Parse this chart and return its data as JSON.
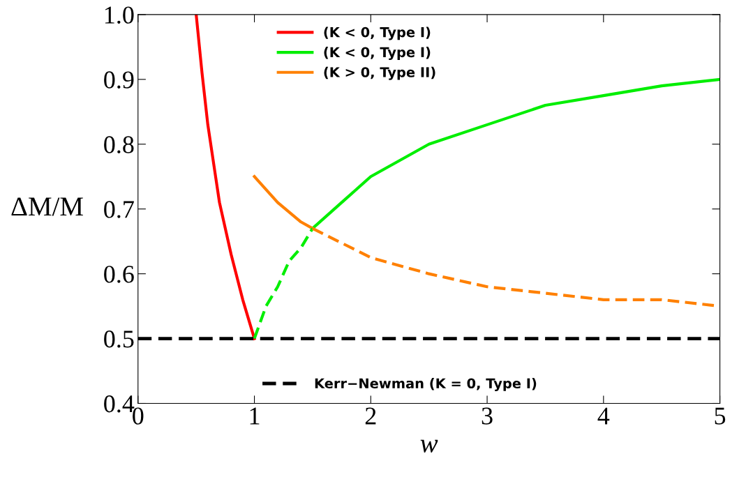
{
  "chart_data": {
    "type": "line",
    "xlabel": "w",
    "ylabel": "ΔM/M",
    "xlim": [
      0,
      5
    ],
    "ylim": [
      0.4,
      1.0
    ],
    "xticks": [
      0,
      1,
      2,
      3,
      4,
      5
    ],
    "yticks": [
      {
        "value": 0.4,
        "label": "0.4"
      },
      {
        "value": 0.5,
        "label": "0.5"
      },
      {
        "value": 0.6,
        "label": "0.6"
      },
      {
        "value": 0.7,
        "label": "0.7"
      },
      {
        "value": 0.8,
        "label": "0.8"
      },
      {
        "value": 0.9,
        "label": "0.9"
      },
      {
        "value": 1.0,
        "label": "1.0"
      }
    ],
    "grid": false,
    "legend": "top",
    "marker": "none",
    "series": [
      {
        "name": "(K < 0, Type I)",
        "color": "#ff0000",
        "line_style": "solid",
        "x": [
          0.5,
          0.55,
          0.6,
          0.7,
          0.8,
          0.9,
          1.0
        ],
        "values": [
          1.0,
          0.91,
          0.83,
          0.71,
          0.63,
          0.56,
          0.5
        ]
      },
      {
        "name": "(K < 0, Type I)",
        "color": "#00ee00",
        "line_style": "solid",
        "x": [
          1.5,
          1.75,
          2,
          2.5,
          3,
          3.5,
          4,
          4.5,
          5
        ],
        "values": [
          0.67,
          0.71,
          0.75,
          0.8,
          0.83,
          0.86,
          0.875,
          0.89,
          0.9
        ]
      },
      {
        "name": "(K > 0, Type II)",
        "color": "#ff8000",
        "line_style": "solid",
        "x": [
          1.0,
          1.2,
          1.4,
          1.5
        ],
        "values": [
          0.75,
          0.71,
          0.68,
          0.67
        ]
      },
      {
        "color": "#00ee00",
        "line_style": "dashed",
        "x": [
          1.0,
          1.1,
          1.2,
          1.3,
          1.4,
          1.5
        ],
        "values": [
          0.5,
          0.55,
          0.58,
          0.62,
          0.64,
          0.67
        ]
      },
      {
        "color": "#ff8000",
        "line_style": "dashed",
        "x": [
          1.5,
          2,
          2.5,
          3,
          3.5,
          4,
          4.5,
          5
        ],
        "values": [
          0.67,
          0.625,
          0.6,
          0.58,
          0.57,
          0.56,
          0.56,
          0.55
        ]
      }
    ],
    "ref_lines": [
      {
        "axis": "y",
        "value": 0.5,
        "label": "Kerr−Newman (K = 0, Type I)",
        "color": "#000000",
        "line_style": "dashed"
      }
    ]
  }
}
